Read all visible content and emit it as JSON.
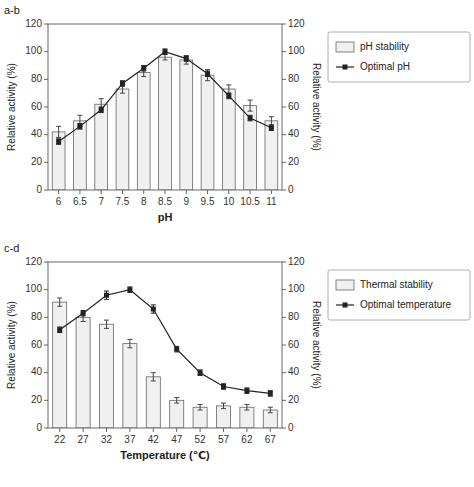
{
  "chart_data": [
    {
      "type": "bar",
      "annotation": "a-b",
      "x_label": "pH",
      "y_label": "Relative activity (%)",
      "y2_label": "Relative activity (%)",
      "categories": [
        "6",
        "6.5",
        "7",
        "7.5",
        "8",
        "8.5",
        "9",
        "9.5",
        "10",
        "10.5",
        "11"
      ],
      "series": [
        {
          "name": "pH stability",
          "type": "bar",
          "color": "#f0f0f0",
          "values": [
            42,
            50,
            62,
            73,
            85,
            96,
            94,
            83,
            73,
            61,
            50
          ],
          "errors": [
            4,
            4,
            4,
            3,
            3,
            2,
            3,
            4,
            3,
            4,
            3
          ]
        },
        {
          "name": "Optimal pH",
          "type": "line",
          "axis": "y2",
          "color": "#222222",
          "marker": "square",
          "values": [
            35,
            46,
            58,
            77,
            88,
            100,
            95,
            84,
            68,
            52,
            45
          ],
          "errors": [
            2,
            2,
            2,
            2,
            2,
            2,
            2,
            2,
            2,
            2,
            2
          ]
        }
      ],
      "ylim": [
        0,
        120
      ],
      "yticks": [
        0,
        20,
        40,
        60,
        80,
        100,
        120
      ],
      "y2lim": [
        0,
        120
      ],
      "y2ticks": [
        0,
        20,
        40,
        60,
        80,
        100,
        120
      ],
      "grid": false,
      "legend": "right"
    },
    {
      "type": "bar",
      "annotation": "c-d",
      "x_label": "Temperature (℃)",
      "y_label": "Relative activity (%)",
      "y2_label": "Relative activity (%)",
      "categories": [
        "22",
        "27",
        "32",
        "37",
        "42",
        "47",
        "52",
        "57",
        "62",
        "67"
      ],
      "series": [
        {
          "name": "Thermal stability",
          "type": "bar",
          "color": "#f0f0f0",
          "values": [
            91,
            80,
            75,
            61,
            37,
            20,
            15,
            16,
            15,
            13
          ],
          "errors": [
            3,
            3,
            3,
            3,
            3,
            2,
            2,
            2,
            2,
            2
          ]
        },
        {
          "name": "Optimal temperature",
          "type": "line",
          "axis": "y2",
          "color": "#222222",
          "marker": "square",
          "values": [
            71,
            83,
            96,
            100,
            86,
            57,
            40,
            30,
            27,
            25
          ],
          "errors": [
            2,
            2,
            3,
            2,
            3,
            2,
            2,
            2,
            2,
            2
          ]
        }
      ],
      "ylim": [
        0,
        120
      ],
      "yticks": [
        0,
        20,
        40,
        60,
        80,
        100,
        120
      ],
      "y2lim": [
        0,
        120
      ],
      "y2ticks": [
        0,
        20,
        40,
        60,
        80,
        100,
        120
      ],
      "grid": false,
      "legend": "right"
    }
  ]
}
